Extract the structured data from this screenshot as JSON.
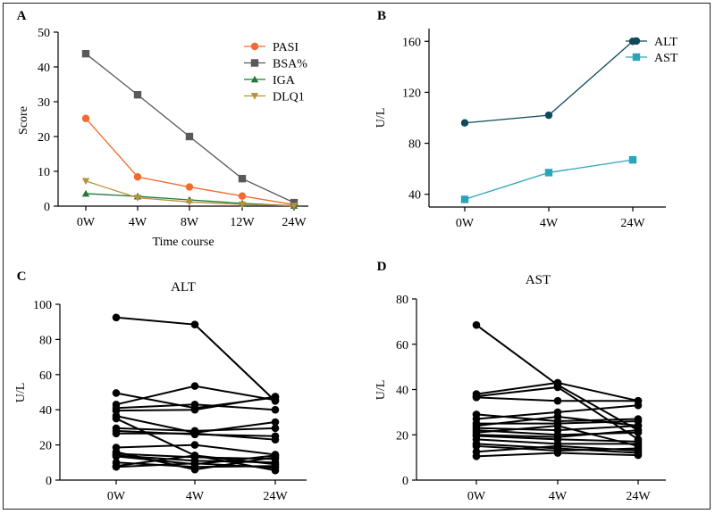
{
  "chart_data": [
    {
      "panel": "A",
      "type": "line",
      "xlabel": "Time course",
      "ylabel": "Score",
      "categories": [
        "0W",
        "4W",
        "8W",
        "12W",
        "24W"
      ],
      "ylim": [
        0,
        50
      ],
      "yticks": [
        0,
        10,
        20,
        30,
        40,
        50
      ],
      "legend_position": "top-right",
      "series": [
        {
          "name": "PASI",
          "color": "#f26a2e",
          "marker": "circle",
          "values": [
            25.2,
            8.4,
            5.5,
            2.9,
            0.4
          ]
        },
        {
          "name": "BSA%",
          "color": "#595959",
          "marker": "square",
          "values": [
            43.8,
            32.0,
            20.0,
            7.9,
            1.0
          ]
        },
        {
          "name": "IGA",
          "color": "#1f7a3a",
          "marker": "triangle-up",
          "values": [
            3.6,
            2.8,
            1.8,
            0.8,
            0.1
          ]
        },
        {
          "name": "DLQ1",
          "color": "#b8903a",
          "marker": "triangle-down",
          "values": [
            7.2,
            2.4,
            1.2,
            0.5,
            0.1
          ]
        }
      ]
    },
    {
      "panel": "B",
      "type": "line",
      "xlabel": "",
      "ylabel": "U/L",
      "categories": [
        "0W",
        "4W",
        "24W"
      ],
      "ylim": [
        30,
        170
      ],
      "yticks": [
        40,
        80,
        120,
        160
      ],
      "legend_position": "top-right",
      "series": [
        {
          "name": "ALT",
          "color": "#0f4a5a",
          "marker": "circle",
          "values": [
            96,
            102,
            160
          ]
        },
        {
          "name": "AST",
          "color": "#2aa5b7",
          "marker": "square",
          "values": [
            36,
            57,
            67
          ]
        }
      ]
    },
    {
      "panel": "C",
      "type": "line",
      "title": "ALT",
      "xlabel": "",
      "ylabel": "U/L",
      "categories": [
        "0W",
        "4W",
        "24W"
      ],
      "ylim": [
        0,
        100
      ],
      "yticks": [
        0,
        20,
        40,
        60,
        80,
        100
      ],
      "color": "#000000",
      "lines": [
        [
          92.5,
          88.5,
          45
        ],
        [
          49.5,
          41,
          47
        ],
        [
          43,
          53.5,
          45.5
        ],
        [
          41,
          43,
          40
        ],
        [
          39.5,
          40,
          47.5
        ],
        [
          36.5,
          27,
          33
        ],
        [
          35,
          14,
          9
        ],
        [
          29.5,
          28,
          29.5
        ],
        [
          28,
          26,
          25
        ],
        [
          26.5,
          26.5,
          23
        ],
        [
          18.5,
          20,
          14.5
        ],
        [
          16,
          6,
          13
        ],
        [
          15,
          13,
          12
        ],
        [
          14,
          11,
          10
        ],
        [
          13.5,
          9,
          14
        ],
        [
          10,
          7.5,
          8
        ],
        [
          8,
          14,
          5.5
        ],
        [
          7.5,
          9.5,
          7
        ]
      ]
    },
    {
      "panel": "D",
      "type": "line",
      "title": "AST",
      "xlabel": "",
      "ylabel": "U/L",
      "categories": [
        "0W",
        "4W",
        "24W"
      ],
      "ylim": [
        0,
        80
      ],
      "yticks": [
        0,
        20,
        40,
        60,
        80
      ],
      "color": "#000000",
      "lines": [
        [
          68.5,
          42,
          22
        ],
        [
          38,
          43,
          35
        ],
        [
          37,
          41,
          18
        ],
        [
          36.5,
          35,
          35
        ],
        [
          29,
          26,
          27
        ],
        [
          27,
          30,
          33
        ],
        [
          25,
          25,
          26
        ],
        [
          24,
          28,
          24
        ],
        [
          23,
          22,
          24
        ],
        [
          22,
          20,
          21
        ],
        [
          21,
          24,
          15
        ],
        [
          20,
          19,
          22
        ],
        [
          19.5,
          18,
          17
        ],
        [
          18,
          16,
          16
        ],
        [
          16,
          14,
          12
        ],
        [
          15,
          13,
          14
        ],
        [
          12.5,
          15,
          13
        ],
        [
          10.5,
          12,
          11
        ]
      ]
    }
  ]
}
